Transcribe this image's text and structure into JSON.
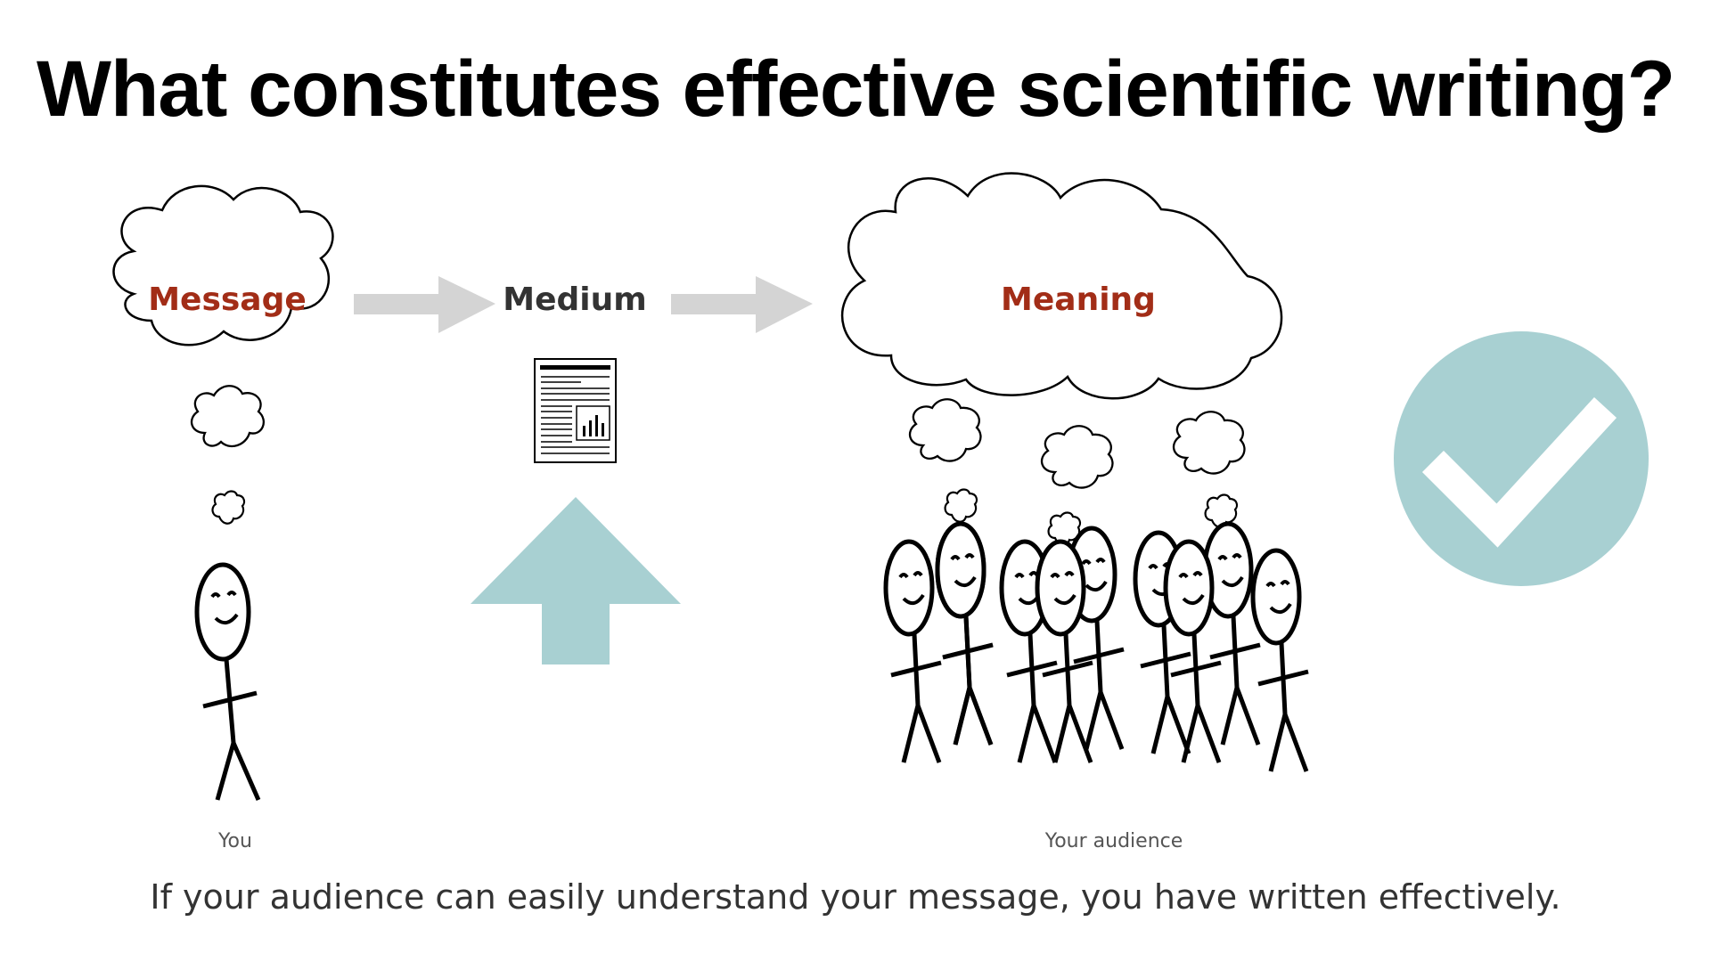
{
  "slide": {
    "title": "What constitutes effective scientific writing?",
    "footer": "If your audience can easily understand your message, you have written effectively."
  },
  "diagram": {
    "message_label": "Message",
    "medium_label": "Medium",
    "meaning_label": "Meaning",
    "you_caption": "You",
    "audience_caption": "Your audience"
  },
  "colors": {
    "accent_red": "#a22d17",
    "teal": "#a8d0d2",
    "gray_arrow": "#d4d4d4",
    "text_dark": "#333333"
  }
}
